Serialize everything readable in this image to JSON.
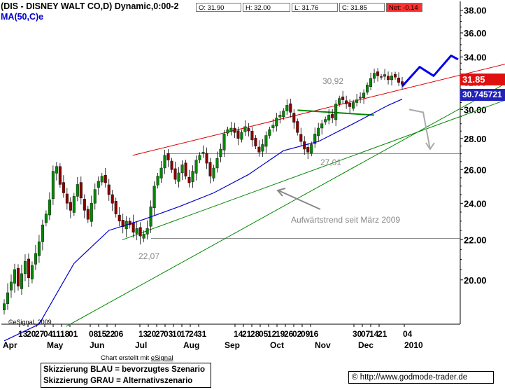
{
  "title": "(DIS - DISNEY WALT CO,D) Dynamic,0:00-2",
  "ma_label": "MA(50,C)e",
  "ohlc": {
    "open": "O: 31.90",
    "high": "H: 32.00",
    "low": "L: 31.76",
    "close": "C: 31.85",
    "net": "Net: -0.14"
  },
  "price_tag": "31.85",
  "ma_tag": "30.745721",
  "price_tag_color": "#e01010",
  "ma_tag_color": "#2222bb",
  "annotations": {
    "high_value": "30,92",
    "low_value": "27,01",
    "start_value": "22,07",
    "trend_label": "Aufwärtstrend seit März 2009"
  },
  "created_by": "Chart erstellt mit ",
  "created_by_brand": "eSignal",
  "esignal_mark": "©eSignal, 2009",
  "legend": {
    "blue": "Skizzierung BLAU = bevorzugtes Szenario",
    "gray": "Skizzierung GRAU = Alternativszenario"
  },
  "source": "http://www.godmode-trader.de",
  "colors": {
    "candle_up": "#008800",
    "candle_down": "#880000",
    "ma": "#0000cc",
    "resistance": "#dd0000",
    "support": "#008800",
    "scenario_blue": "#0000ee",
    "scenario_gray": "#aaaaaa"
  },
  "chart_data": {
    "type": "candlestick",
    "y_ticks": [
      "38.00",
      "36.00",
      "34.00",
      "32.00",
      "30.00",
      "28.00",
      "26.00",
      "24.00",
      "22.00",
      "20.00"
    ],
    "y_scale": "log",
    "ylim": [
      18,
      38.8
    ],
    "day_labels": [
      "13",
      "20",
      "27",
      "04",
      "11",
      "18",
      "01",
      "08",
      "15",
      "22",
      "06",
      "13",
      "20",
      "27",
      "03",
      "10",
      "17",
      "24",
      "31",
      "14",
      "21",
      "28",
      "05",
      "12",
      "19",
      "26",
      "02",
      "09",
      "16",
      "30",
      "07",
      "14",
      "21",
      "04"
    ],
    "month_labels": [
      "Apr",
      "May",
      "Jun",
      "Jul",
      "Aug",
      "Sep",
      "Oct",
      "Nov",
      "Dec",
      "2010"
    ],
    "series": [
      {
        "name": "DIS",
        "close": [
          18.9,
          19.4,
          19.9,
          20.5,
          19.7,
          20.3,
          20.9,
          20.1,
          20.7,
          21.3,
          21.9,
          22.8,
          23.4,
          24.2,
          25.9,
          26.2,
          25.1,
          24.6,
          24.0,
          23.6,
          24.4,
          25.1,
          24.3,
          23.6,
          23.1,
          24.0,
          24.8,
          25.3,
          25.6,
          25.2,
          24.5,
          24.0,
          23.4,
          23.0,
          22.7,
          23.0,
          22.8,
          22.4,
          22.6,
          22.2,
          22.3,
          22.6,
          23.8,
          25.0,
          25.6,
          26.1,
          26.9,
          26.6,
          26.0,
          25.4,
          25.8,
          26.3,
          25.6,
          25.2,
          25.9,
          26.6,
          26.9,
          27.1,
          26.4,
          25.6,
          26.1,
          26.7,
          27.3,
          28.3,
          28.6,
          28.7,
          28.4,
          28.0,
          28.4,
          28.8,
          28.5,
          27.9,
          27.5,
          27.1,
          27.6,
          28.2,
          28.6,
          28.9,
          29.4,
          29.6,
          29.9,
          30.3,
          29.8,
          29.1,
          28.4,
          27.8,
          27.3,
          27.1,
          27.6,
          28.3,
          28.7,
          29.0,
          29.3,
          29.6,
          29.4,
          30.4,
          30.8,
          30.7,
          30.4,
          30.2,
          30.5,
          30.7,
          30.9,
          31.2,
          31.8,
          32.3,
          32.7,
          32.5,
          32.4,
          32.6,
          32.2,
          32.5,
          32.4,
          32.0,
          31.85
        ]
      }
    ],
    "moving_average": {
      "name": "MA(50,C)e",
      "values": [
        [
          0,
          17.3
        ],
        [
          10,
          18.0
        ],
        [
          20,
          20.8
        ],
        [
          30,
          22.5
        ],
        [
          40,
          23.1
        ],
        [
          50,
          23.8
        ],
        [
          60,
          24.6
        ],
        [
          70,
          25.7
        ],
        [
          80,
          27.2
        ],
        [
          90,
          27.8
        ],
        [
          100,
          29.0
        ],
        [
          110,
          30.3
        ],
        [
          114,
          30.75
        ]
      ]
    },
    "lines": {
      "resistance": {
        "from": [
          37,
          26.9
        ],
        "to": [
          160,
          34.6
        ]
      },
      "support_steep": {
        "from": [
          18,
          17.9
        ],
        "to": [
          160,
          34.5
        ]
      },
      "support_main": {
        "from": [
          34,
          22.0
        ],
        "to": [
          160,
          32.3
        ]
      },
      "triangle_top": [
        [
          73,
          30.0
        ],
        [
          89,
          29.7
        ]
      ],
      "horizontal_22": 22.07,
      "horizontal_27": 27.01
    },
    "scenarios": {
      "blue": [
        [
          114,
          31.7
        ],
        [
          119,
          33.2
        ],
        [
          123,
          32.5
        ],
        [
          128,
          34.1
        ],
        [
          130,
          33.8
        ]
      ],
      "gray": [
        [
          116,
          30.0
        ],
        [
          120,
          29.8
        ],
        [
          122,
          27.3
        ]
      ]
    }
  }
}
